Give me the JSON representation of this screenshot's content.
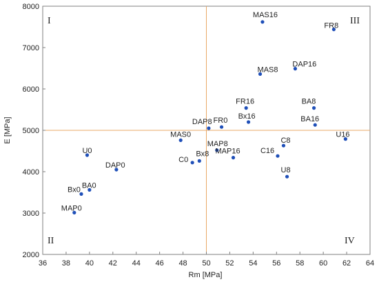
{
  "chart_data": {
    "type": "scatter",
    "xlabel": "Rm [MPa]",
    "ylabel": "E [MPa]",
    "xlim": [
      36,
      64
    ],
    "ylim": [
      2000,
      8000
    ],
    "xticks": [
      36,
      38,
      40,
      42,
      44,
      46,
      48,
      50,
      52,
      54,
      56,
      58,
      60,
      62,
      64
    ],
    "yticks": [
      2000,
      3000,
      4000,
      5000,
      6000,
      7000,
      8000
    ],
    "grid": false,
    "reference_lines": {
      "x": 50,
      "y": 5000
    },
    "quadrant_labels": {
      "top_left": "I",
      "top_right": "III",
      "bottom_left": "II",
      "bottom_right": "IV"
    },
    "points": [
      {
        "label": "MAS16",
        "x": 54.8,
        "y": 7620
      },
      {
        "label": "FR8",
        "x": 60.9,
        "y": 7440
      },
      {
        "label": "DAP16",
        "x": 57.6,
        "y": 6490
      },
      {
        "label": "MAS8",
        "x": 54.6,
        "y": 6360
      },
      {
        "label": "FR16",
        "x": 53.4,
        "y": 5540
      },
      {
        "label": "BA8",
        "x": 59.2,
        "y": 5540
      },
      {
        "label": "Bx16",
        "x": 53.6,
        "y": 5200
      },
      {
        "label": "BA16",
        "x": 59.3,
        "y": 5130
      },
      {
        "label": "DAP8",
        "x": 50.2,
        "y": 5050
      },
      {
        "label": "FR0",
        "x": 51.3,
        "y": 5080
      },
      {
        "label": "U16",
        "x": 61.9,
        "y": 4790
      },
      {
        "label": "MAS0",
        "x": 47.8,
        "y": 4760
      },
      {
        "label": "C8",
        "x": 56.6,
        "y": 4630
      },
      {
        "label": "MAP8",
        "x": 50.9,
        "y": 4520
      },
      {
        "label": "C16",
        "x": 56.1,
        "y": 4380
      },
      {
        "label": "MAP16",
        "x": 52.3,
        "y": 4340
      },
      {
        "label": "Bx8",
        "x": 49.4,
        "y": 4260
      },
      {
        "label": "C0",
        "x": 48.8,
        "y": 4220
      },
      {
        "label": "U0",
        "x": 39.8,
        "y": 4400
      },
      {
        "label": "DAP0",
        "x": 42.3,
        "y": 4050
      },
      {
        "label": "U8",
        "x": 56.9,
        "y": 3880
      },
      {
        "label": "BA0",
        "x": 40.0,
        "y": 3560
      },
      {
        "label": "Bx0",
        "x": 39.3,
        "y": 3460
      },
      {
        "label": "MAP0",
        "x": 38.7,
        "y": 3010
      }
    ]
  },
  "colors": {
    "point": "#1f4fb8",
    "reference_line": "#e8a866",
    "frame": "#7f7f7f"
  }
}
